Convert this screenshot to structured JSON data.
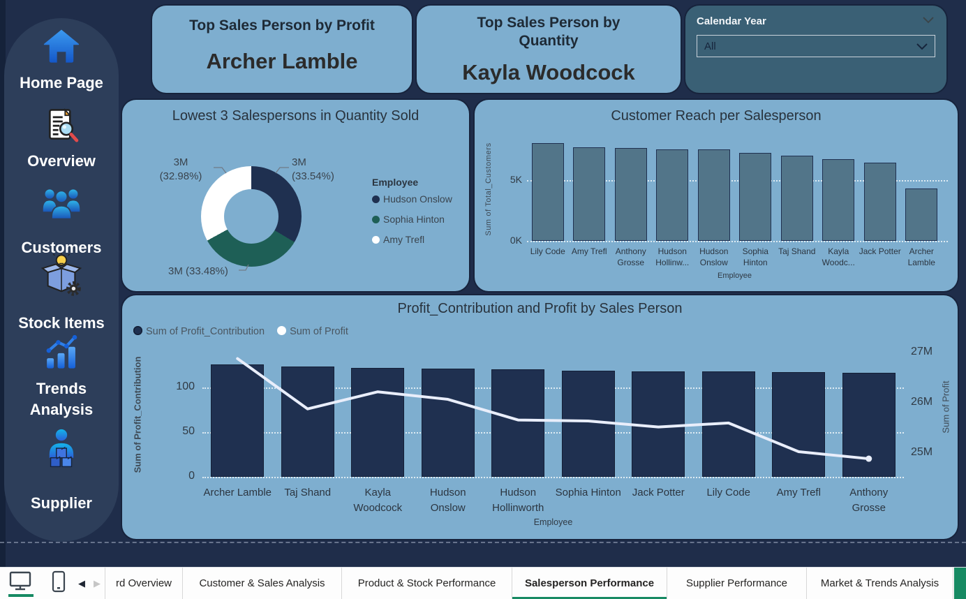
{
  "colors": {
    "canvas": "#1f2d4a",
    "panel": "#7eaecf",
    "slicer_panel": "#3a6075",
    "navy": "#1f3050",
    "teal": "#1e5f56",
    "reach_bar": "#527589",
    "line": "#e9eefb",
    "accent_green": "#178a63"
  },
  "sidebar": {
    "items": [
      {
        "label": "Home Page",
        "icon": "home-icon"
      },
      {
        "label": "Overview",
        "icon": "document-search-icon"
      },
      {
        "label": "Customers",
        "icon": "people-group-icon"
      },
      {
        "label": "Stock Items",
        "icon": "box-bulb-gear-icon"
      },
      {
        "label": "Trends Analysis",
        "icon": "bar-line-chart-icon"
      },
      {
        "label": "Supplier",
        "icon": "person-cubes-icon"
      }
    ]
  },
  "kpi_cards": [
    {
      "title": "Top Sales Person by Profit",
      "value": "Archer Lamble"
    },
    {
      "title": "Top Sales Person by Quantity",
      "value": "Kayla Woodcock"
    }
  ],
  "slicer": {
    "label": "Calendar Year",
    "value": "All"
  },
  "chart_data": [
    {
      "type": "pie",
      "title": "Lowest 3 Salespersons in Quantity Sold",
      "legend_title": "Employee",
      "legend_position": "right",
      "donut": true,
      "slices": [
        {
          "name": "Hudson Onslow",
          "label": "3M (33.54%)",
          "pct": 33.54,
          "color": "#1f3050"
        },
        {
          "name": "Sophia Hinton",
          "label": "3M (33.48%)",
          "pct": 33.48,
          "color": "#1e5f56"
        },
        {
          "name": "Amy Trefl",
          "label": "3M (32.98%)",
          "pct": 32.98,
          "color": "#ffffff"
        }
      ]
    },
    {
      "type": "bar",
      "title": "Customer Reach per Salesperson",
      "xlabel": "Employee",
      "ylabel": "Sum of Total_Customers",
      "categories": [
        "Lily Code",
        "Amy Trefl",
        "Anthony Grosse",
        "Hudson Hollinw...",
        "Hudson Onslow",
        "Sophia Hinton",
        "Taj Shand",
        "Kayla Woodc...",
        "Jack Potter",
        "Archer Lamble"
      ],
      "values_thousands": [
        8.0,
        7.7,
        7.6,
        7.5,
        7.5,
        7.2,
        7.0,
        6.7,
        6.4,
        4.3
      ],
      "yticks": [
        "0K",
        "5K"
      ],
      "ylim_thousands": [
        0,
        8.6
      ],
      "grid": "dotted"
    },
    {
      "type": "bar+line",
      "title": "Profit_Contribution and Profit by Sales Person",
      "xlabel": "Employee",
      "ylabel_left": "Sum of Profit_Contribution",
      "ylabel_right": "Sum of Profit",
      "legend": [
        {
          "name": "Sum of Profit_Contribution",
          "color": "#1f3050",
          "series": "bar"
        },
        {
          "name": "Sum of Profit",
          "color": "#ffffff",
          "series": "line"
        }
      ],
      "categories": [
        "Archer Lamble",
        "Taj Shand",
        "Kayla Woodcock",
        "Hudson Onslow",
        "Hudson Hollinworth",
        "Sophia Hinton",
        "Jack Potter",
        "Lily Code",
        "Amy Trefl",
        "Anthony Grosse"
      ],
      "series": [
        {
          "name": "Sum of Profit_Contribution",
          "type": "bar",
          "values": [
            126,
            123,
            122,
            121,
            120,
            119,
            118,
            118,
            117,
            116
          ]
        },
        {
          "name": "Sum of Profit",
          "type": "line",
          "values_millions": [
            26.88,
            25.88,
            26.22,
            26.07,
            25.66,
            25.64,
            25.52,
            25.6,
            25.03,
            24.89
          ]
        }
      ],
      "yticks_left": [
        "0",
        "50",
        "100"
      ],
      "ylim_left": [
        0,
        139
      ],
      "yticks_right": [
        "25M",
        "26M",
        "27M"
      ],
      "ylim_right_millions": [
        24.53,
        27.0
      ],
      "grid": "dotted"
    }
  ],
  "bottom_bar": {
    "back_arrow": "◀",
    "forward_arrow": "▶",
    "tabs": [
      {
        "label": "rd Overview",
        "active": false
      },
      {
        "label": "Customer & Sales Analysis",
        "active": false
      },
      {
        "label": "Product & Stock Performance",
        "active": false
      },
      {
        "label": "Salesperson Performance",
        "active": true
      },
      {
        "label": "Supplier Performance",
        "active": false
      },
      {
        "label": "Market & Trends Analysis",
        "active": false
      }
    ]
  }
}
